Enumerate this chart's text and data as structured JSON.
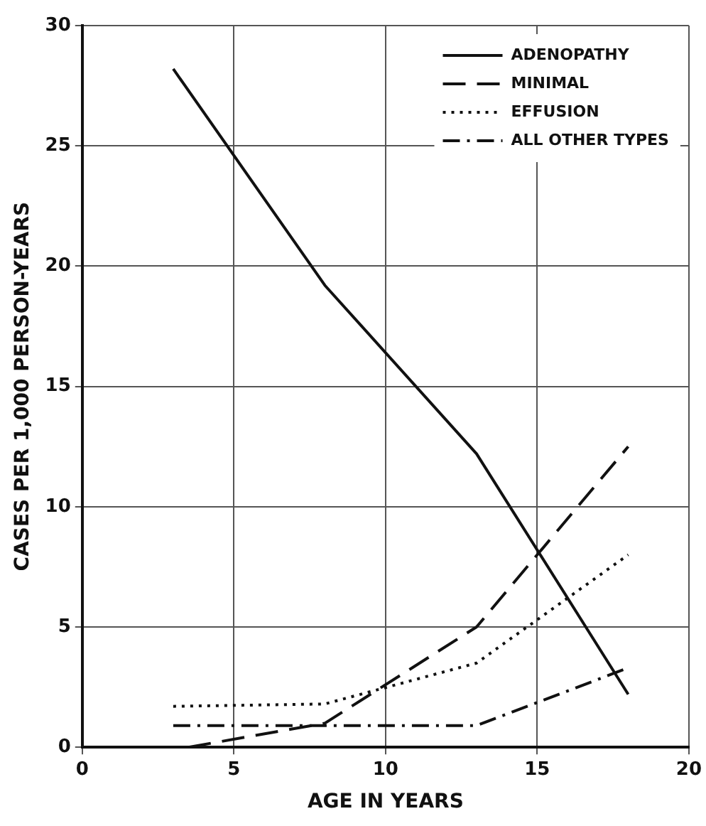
{
  "chart_data": {
    "type": "line",
    "xlabel": "AGE IN YEARS",
    "ylabel": "CASES PER 1,000 PERSON-YEARS",
    "xlim": [
      0,
      20
    ],
    "xticks": [
      0,
      5,
      10,
      15,
      20
    ],
    "ylim": [
      0,
      30
    ],
    "yticks": [
      0,
      5,
      10,
      15,
      20,
      25,
      30
    ],
    "grid": true,
    "legend": "top right",
    "marker": "none",
    "series": [
      {
        "name": "ADENOPATHY",
        "color": "#111111",
        "line_style": "solid",
        "x": [
          3,
          8,
          13,
          18
        ],
        "values": [
          28.2,
          19.2,
          12.2,
          2.2
        ]
      },
      {
        "name": "MINIMAL",
        "color": "#111111",
        "line_style": "dashed",
        "x": [
          3.5,
          8,
          13,
          18
        ],
        "values": [
          0,
          1,
          5,
          12.5
        ]
      },
      {
        "name": "EFFUSION",
        "color": "#111111",
        "line_style": "dotted",
        "x": [
          3,
          8,
          13,
          18
        ],
        "values": [
          1.7,
          1.8,
          3.5,
          8
        ]
      },
      {
        "name": "ALL OTHER TYPES",
        "color": "#111111",
        "line_style": "dashdot",
        "x": [
          3,
          8,
          13,
          18
        ],
        "values": [
          0.9,
          0.9,
          0.9,
          3.3
        ]
      }
    ]
  }
}
